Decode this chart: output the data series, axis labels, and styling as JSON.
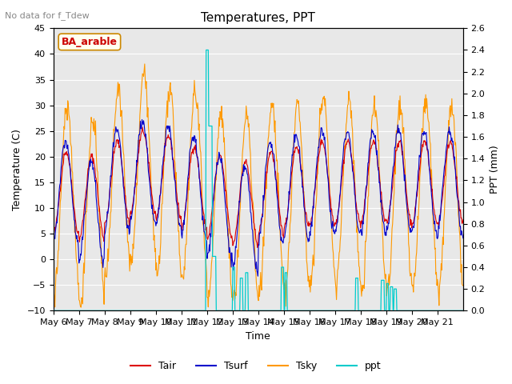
{
  "title": "Temperatures, PPT",
  "no_data_text": "No data for f_Tdew",
  "station_label": "BA_arable",
  "xlabel": "Time",
  "ylabel_left": "Temperature (C)",
  "ylabel_right": "PPT (mm)",
  "ylim_left": [
    -10,
    45
  ],
  "ylim_right": [
    0.0,
    2.6
  ],
  "yticks_left": [
    -10,
    -5,
    0,
    5,
    10,
    15,
    20,
    25,
    30,
    35,
    40,
    45
  ],
  "yticks_right": [
    0.0,
    0.2,
    0.4,
    0.6,
    0.8,
    1.0,
    1.2,
    1.4,
    1.6,
    1.8,
    2.0,
    2.2,
    2.4,
    2.6
  ],
  "xticklabels": [
    "May 6",
    "May 7",
    "May 8",
    "May 9",
    "May 10",
    "May 11",
    "May 12",
    "May 13",
    "May 14",
    "May 15",
    "May 16",
    "May 17",
    "May 18",
    "May 19",
    "May 20",
    "May 21"
  ],
  "colors": {
    "Tair": "#dd0000",
    "Tsurf": "#0000cc",
    "Tsky": "#ff9900",
    "ppt": "#00cccc",
    "background": "#e8e8e8",
    "grid": "#ffffff"
  },
  "n_days": 16,
  "pts_per_day": 48
}
